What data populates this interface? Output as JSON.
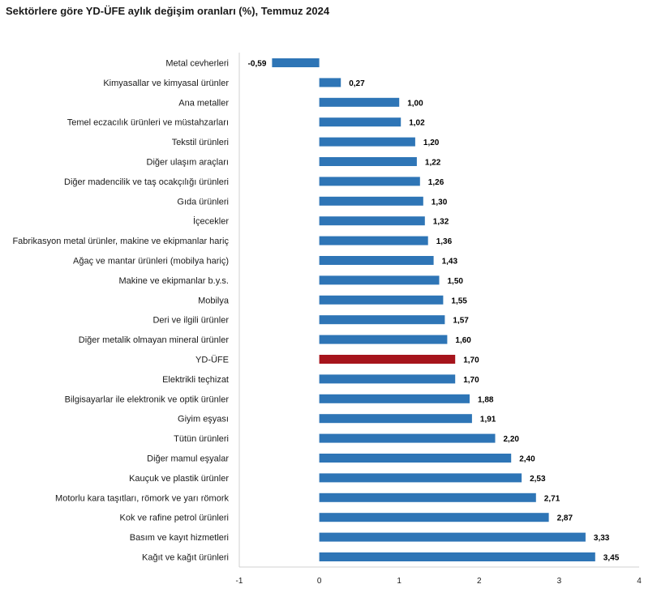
{
  "chart_data": {
    "type": "bar",
    "orientation": "horizontal",
    "title": "Sektörlere göre YD-ÜFE aylık değişim oranları (%), Temmuz 2024",
    "xlabel": "",
    "ylabel": "",
    "xlim": [
      -1,
      4
    ],
    "ticks": [
      "-1",
      "0",
      "1",
      "2",
      "3",
      "4"
    ],
    "grid": false,
    "legend": "none",
    "colors": {
      "default": "#2e75b6",
      "highlight": "#a6141c"
    },
    "highlight_category": "YD-ÜFE",
    "categories": [
      "Metal cevherleri",
      "Kimyasallar ve kimyasal ürünler",
      "Ana metaller",
      "Temel eczacılık ürünleri ve müstahzarları",
      "Tekstil ürünleri",
      "Diğer ulaşım araçları",
      "Diğer madencilik ve taş ocakçılığı ürünleri",
      "Gıda ürünleri",
      "İçecekler",
      "Fabrikasyon metal ürünler, makine ve ekipmanlar hariç",
      "Ağaç ve mantar ürünleri (mobilya hariç)",
      "Makine ve ekipmanlar b.y.s.",
      "Mobilya",
      "Deri ve ilgili ürünler",
      "Diğer metalik olmayan mineral ürünler",
      "YD-ÜFE",
      "Elektrikli teçhizat",
      "Bilgisayarlar ile elektronik ve optik ürünler",
      "Giyim eşyası",
      "Tütün ürünleri",
      "Diğer mamul eşyalar",
      "Kauçuk ve plastik ürünler",
      "Motorlu kara taşıtları, römork ve yarı römork",
      "Kok ve rafine petrol ürünleri",
      "Basım ve kayıt hizmetleri",
      "Kağıt ve kağıt ürünleri"
    ],
    "values": [
      -0.59,
      0.27,
      1.0,
      1.02,
      1.2,
      1.22,
      1.26,
      1.3,
      1.32,
      1.36,
      1.43,
      1.5,
      1.55,
      1.57,
      1.6,
      1.7,
      1.7,
      1.88,
      1.91,
      2.2,
      2.4,
      2.53,
      2.71,
      2.87,
      3.33,
      3.45
    ],
    "value_labels": [
      "-0,59",
      "0,27",
      "1,00",
      "1,02",
      "1,20",
      "1,22",
      "1,26",
      "1,30",
      "1,32",
      "1,36",
      "1,43",
      "1,50",
      "1,55",
      "1,57",
      "1,60",
      "1,70",
      "1,70",
      "1,88",
      "1,91",
      "2,20",
      "2,40",
      "2,53",
      "2,71",
      "2,87",
      "3,33",
      "3,45"
    ]
  }
}
